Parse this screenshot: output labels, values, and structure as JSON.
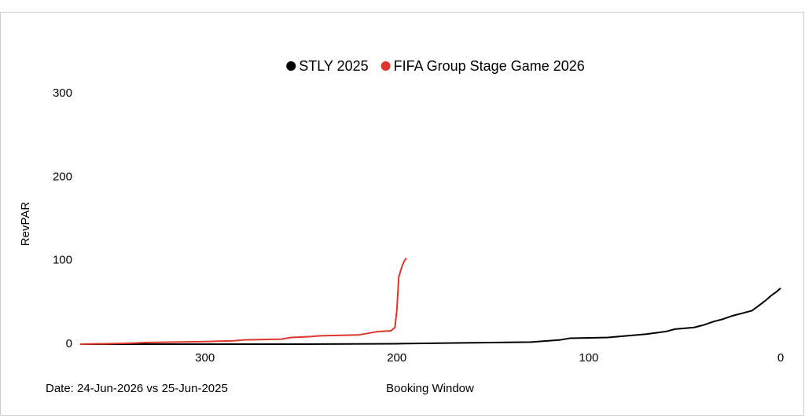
{
  "chart_data": {
    "type": "line",
    "x_label": "Booking Window",
    "y_label": "RevPAR",
    "footnote": "Date: 24-Jun-2026 vs 25-Jun-2025",
    "xlim": [
      365,
      0
    ],
    "xticks": [
      300,
      200,
      100,
      0
    ],
    "ylim": [
      0,
      300
    ],
    "yticks": [
      0,
      100,
      200,
      300
    ],
    "legend": "top",
    "series": [
      {
        "name": "STLY 2025",
        "color": "#000000",
        "x": [
          365,
          300,
          250,
          200,
          165,
          130,
          115,
          110,
          90,
          80,
          70,
          60,
          55,
          45,
          40,
          35,
          30,
          25,
          20,
          15,
          12,
          8,
          5,
          2,
          0
        ],
        "values": [
          0,
          0,
          0,
          0.5,
          1.5,
          2.5,
          5,
          7,
          8,
          10,
          12,
          15,
          18,
          20,
          23,
          27,
          30,
          34,
          37,
          40,
          45,
          52,
          58,
          63,
          67
        ]
      },
      {
        "name": "FIFA Group Stage Game 2026",
        "color": "#e0352b",
        "x": [
          365,
          340,
          330,
          300,
          285,
          280,
          260,
          255,
          245,
          240,
          220,
          215,
          210,
          203,
          201,
          200,
          199,
          198,
          197,
          196,
          195
        ],
        "values": [
          0,
          1,
          2,
          3,
          4,
          5,
          6,
          8,
          9,
          10,
          11,
          13,
          15,
          16,
          20,
          40,
          80,
          88,
          95,
          100,
          103
        ]
      }
    ]
  }
}
